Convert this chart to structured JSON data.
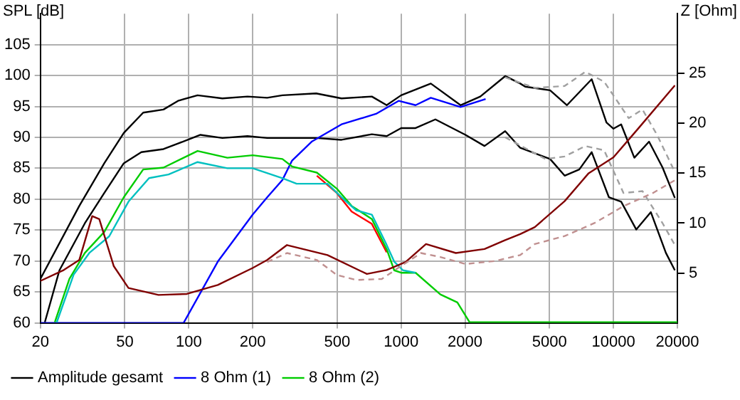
{
  "chart_data": {
    "type": "line",
    "ylabel": "SPL [dB]",
    "y2label": "Z [Ohm]",
    "log": "x",
    "xlim": [
      20,
      20000
    ],
    "xticks": [
      20,
      50,
      100,
      200,
      500,
      1000,
      2000,
      5000,
      10000,
      20000
    ],
    "ylim": [
      60,
      110
    ],
    "yticks": [
      60,
      65,
      70,
      75,
      80,
      85,
      90,
      95,
      100,
      105
    ],
    "y2lim": [
      0,
      31
    ],
    "y2ticks": [
      5,
      10,
      15,
      20,
      25
    ],
    "grid": true,
    "legend": "bottom",
    "marker": "none",
    "line_style": "solid",
    "series": [
      {
        "name": "Amplitude gesamt",
        "color": "#000000",
        "x": [
          20,
          30.5,
          40,
          49.4,
          61,
          76,
          89,
          110,
          144,
          189,
          234,
          276,
          398,
          524,
          728,
          855,
          1000,
          1380,
          1905,
          2360,
          3090,
          3640,
          3840,
          5030,
          6040,
          7900,
          9270,
          10000,
          10870,
          12540,
          14710,
          17040,
          19460
        ],
        "values": [
          67.1,
          78.9,
          85.8,
          90.7,
          94,
          94.5,
          95.9,
          96.8,
          96.3,
          96.6,
          96.4,
          96.8,
          97.1,
          96.3,
          96.6,
          95.2,
          96.8,
          98.7,
          95.2,
          96.6,
          99.9,
          98.7,
          98.2,
          97.6,
          95.2,
          99.4,
          92.4,
          91.4,
          92.1,
          86.7,
          89.3,
          85.1,
          80.2
        ]
      },
      {
        "color": "#000000",
        "x": [
          21,
          24.6,
          32.4,
          40,
          49.4,
          59.8,
          76,
          89,
          113.5,
          144,
          189,
          234,
          398,
          524,
          728,
          855,
          1000,
          1170,
          1450,
          2010,
          2470,
          3090,
          3640,
          5030,
          5890,
          6900,
          7900,
          9520,
          10870,
          12800,
          15000,
          17660,
          19460
        ],
        "values": [
          60.1,
          68.5,
          76.1,
          81,
          85.8,
          87.6,
          88.1,
          89,
          90.4,
          89.9,
          90.2,
          89.9,
          89.9,
          89.6,
          90.5,
          90.2,
          91.5,
          91.5,
          92.9,
          90.4,
          88.6,
          91,
          88.3,
          86.5,
          83.8,
          84.8,
          87.6,
          80.3,
          79.6,
          75.1,
          77.9,
          71.3,
          68.5
        ]
      },
      {
        "color": "#a0a0a0",
        "line_style": "dashed",
        "x": [
          3090,
          4260,
          5890,
          7370,
          9040,
          11800,
          13700,
          16040,
          19460
        ],
        "values": [
          99.7,
          98,
          98.3,
          100.6,
          99,
          93.1,
          94.5,
          90.4,
          84.4
        ]
      },
      {
        "color": "#a0a0a0",
        "line_style": "dashed",
        "x": [
          3090,
          4780,
          5890,
          7370,
          9040,
          11150,
          13700,
          17040,
          19460
        ],
        "values": [
          90,
          86.5,
          86.9,
          88.6,
          87.9,
          81,
          81.3,
          76.1,
          72.6
        ]
      },
      {
        "name": "8 Ohm (1)",
        "color": "#0000ff",
        "x": [
          20,
          94.6,
          137,
          200,
          234,
          276,
          306,
          379,
          524,
          762,
          973,
          1170,
          1380,
          1905,
          2500
        ],
        "values": [
          60,
          60,
          69.9,
          77.5,
          80.3,
          83.1,
          86.2,
          89.3,
          92.1,
          93.8,
          95.9,
          95.2,
          96.4,
          94.9,
          96.2
        ]
      },
      {
        "color": "#ff0000",
        "x": [
          401,
          498,
          585,
          728,
          855
        ],
        "values": [
          83.8,
          81,
          78,
          76,
          71.4
        ]
      },
      {
        "name": "8 Ohm (2)",
        "color": "#00cc00",
        "x": [
          23.4,
          27.4,
          32.4,
          40,
          49.4,
          61,
          76,
          110,
          152,
          200,
          276,
          306,
          401,
          498,
          585,
          728,
          855,
          928,
          1000,
          1170,
          1530,
          1840,
          2100,
          20000
        ],
        "values": [
          60.1,
          67.1,
          71.3,
          74.7,
          80.3,
          84.8,
          85.1,
          87.8,
          86.7,
          87.1,
          86.5,
          85.3,
          84.3,
          81.7,
          78.9,
          76.8,
          71.9,
          68.5,
          68.1,
          68.1,
          64.6,
          63.3,
          60.1,
          60.1
        ]
      },
      {
        "color": "#00c0c0",
        "x": [
          23.9,
          28.7,
          34,
          42.2,
          52,
          65,
          80.3,
          110,
          152,
          200,
          276,
          322,
          450,
          524,
          615,
          728,
          855,
          928,
          1020,
          1170
        ],
        "values": [
          60.1,
          67.8,
          71.3,
          74,
          79.6,
          83.4,
          84,
          86,
          85,
          85,
          83.4,
          82.5,
          82.5,
          80.3,
          78.2,
          77.5,
          72.6,
          69.9,
          68.5,
          68.1
        ]
      },
      {
        "color": "#800000",
        "axis": "y2",
        "x": [
          20,
          25.8,
          30.5,
          35.1,
          37.9,
          44.3,
          52,
          72,
          98,
          137,
          200,
          234,
          290,
          450,
          690,
          855,
          1050,
          1310,
          1810,
          2470,
          3090,
          3640,
          4260,
          5890,
          7640,
          10000,
          13100,
          19460
        ],
        "values": [
          4.2,
          5.3,
          6.3,
          10.7,
          10.4,
          5.7,
          3.5,
          2.8,
          2.9,
          3.8,
          5.5,
          6.3,
          7.8,
          6.8,
          4.9,
          5.3,
          6.1,
          7.9,
          7,
          7.4,
          8.3,
          8.9,
          9.6,
          12.2,
          15,
          16.6,
          19.5,
          23.8
        ]
      },
      {
        "color": "#c09090",
        "axis": "y2",
        "line_style": "dashed",
        "x": [
          234,
          290,
          401,
          498,
          615,
          811,
          1000,
          1240,
          1530,
          2010,
          2770,
          3640,
          4260,
          5890,
          8130,
          11150,
          15280,
          19460
        ],
        "values": [
          6.1,
          7,
          6.3,
          4.8,
          4.3,
          4.4,
          5.7,
          7,
          6.6,
          5.9,
          6.2,
          6.8,
          7.9,
          8.7,
          10,
          11.7,
          13,
          14.3
        ]
      }
    ]
  }
}
